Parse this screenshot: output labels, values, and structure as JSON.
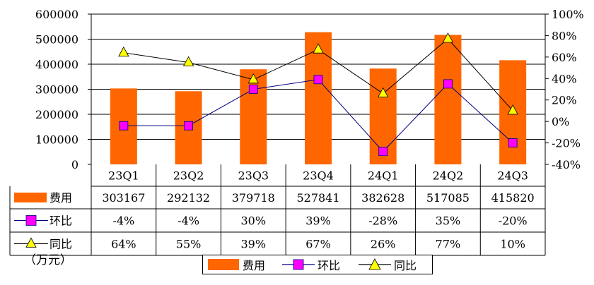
{
  "chart_data": {
    "type": "bar",
    "categories": [
      "23Q1",
      "23Q2",
      "23Q3",
      "23Q4",
      "24Q1",
      "24Q2",
      "24Q3"
    ],
    "y_left": {
      "ticks": [
        "600000",
        "500000",
        "400000",
        "300000",
        "200000",
        "100000",
        "0"
      ],
      "range": [
        0,
        600000
      ]
    },
    "y_right": {
      "ticks": [
        "100%",
        "80%",
        "60%",
        "40%",
        "20%",
        "0%",
        "-20%",
        "-40%"
      ],
      "range": [
        -40,
        100
      ]
    },
    "series": [
      {
        "name": "费用",
        "type": "bar",
        "axis": "left",
        "color": "#ff6600",
        "values": [
          303167,
          292132,
          379718,
          527841,
          382628,
          517085,
          415820
        ],
        "labels": [
          "303167",
          "292132",
          "379718",
          "527841",
          "382628",
          "517085",
          "415820"
        ]
      },
      {
        "name": "环比",
        "type": "line",
        "axis": "right",
        "marker": "square",
        "color": "#ff00ff",
        "values": [
          -4,
          -4,
          30,
          39,
          -28,
          35,
          -20
        ],
        "labels": [
          "-4%",
          "-4%",
          "30%",
          "39%",
          "-28%",
          "35%",
          "-20%"
        ]
      },
      {
        "name": "同比",
        "type": "line",
        "axis": "right",
        "marker": "triangle",
        "color": "#ffff00",
        "values": [
          64,
          55,
          39,
          67,
          26,
          77,
          10
        ],
        "labels": [
          "64%",
          "55%",
          "39%",
          "67%",
          "26%",
          "77%",
          "10%"
        ]
      }
    ],
    "ylabel": "（万元）",
    "grid": true,
    "legend": "bottom"
  }
}
